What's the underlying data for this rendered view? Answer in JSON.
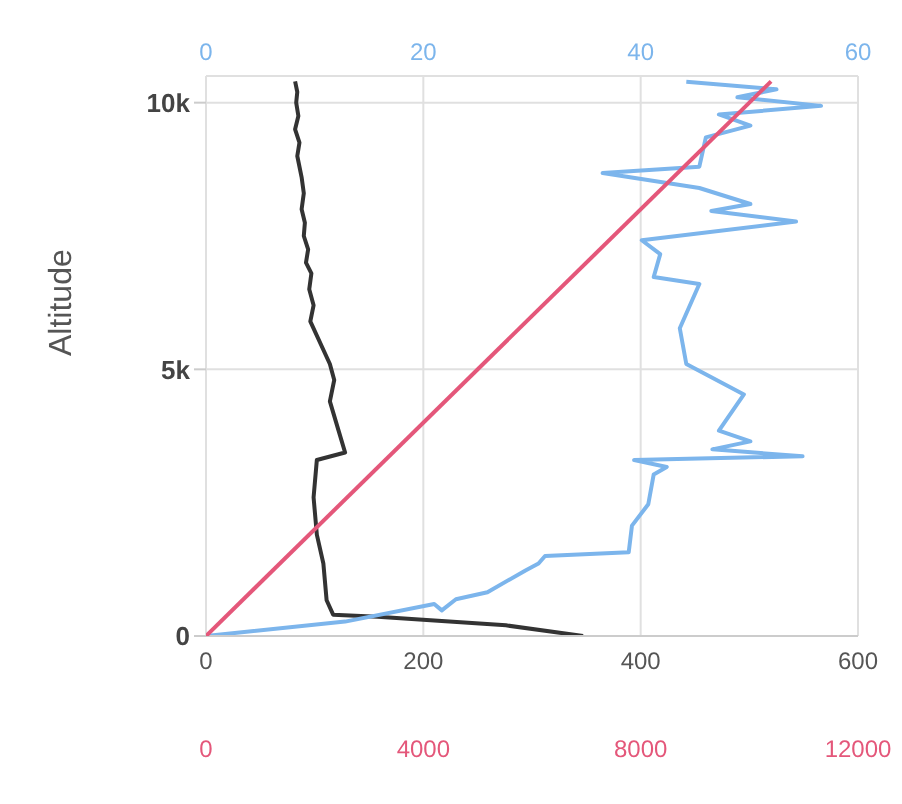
{
  "chart_data": [
    {
      "type": "line",
      "ylabel": "Altitude",
      "ylim": [
        0,
        10500
      ],
      "yticks": [
        {
          "value": 0,
          "label": "0"
        },
        {
          "value": 5000,
          "label": "5k"
        },
        {
          "value": 10000,
          "label": "10k"
        }
      ],
      "xlim": [
        0,
        600
      ],
      "xticks": [
        0,
        200,
        400,
        600
      ],
      "x2lim": [
        0,
        60
      ],
      "x2ticks": [
        0,
        20,
        40,
        60
      ],
      "grid": true,
      "marker": "none",
      "series": [
        {
          "color": "#333333",
          "x": [
            347,
            276,
            158,
            117,
            111,
            108,
            102,
            99,
            102,
            128,
            122,
            114,
            118,
            114,
            null,
            96,
            99,
            95,
            97,
            92,
            94,
            90,
            91,
            88,
            90,
            88,
            null,
            84,
            86,
            82,
            85,
            83,
            84,
            82
          ],
          "values": [
            0,
            200,
            360,
            400,
            670,
            1360,
            1900,
            2600,
            3300,
            3440,
            3850,
            4400,
            4800,
            5100,
            null,
            5900,
            6200,
            6500,
            6800,
            7000,
            7250,
            7500,
            7750,
            8000,
            8300,
            8600,
            null,
            9000,
            9250,
            9500,
            9750,
            10000,
            10200,
            10400
          ]
        },
        {
          "color": "#7cb5ec",
          "axis": "x2",
          "x": [
            0,
            12.8,
            21,
            21.7,
            23,
            25.9,
            29.4,
            30.6,
            31.2,
            38.9,
            39.2,
            40.7,
            41.2,
            42.4,
            39.4,
            54.9,
            46.6,
            50.1,
            47.2,
            49.5,
            44.2,
            43.6,
            45.4,
            41.2,
            41.8,
            40.1,
            54.3,
            46.5,
            50.1,
            45.4,
            36.5,
            45.4,
            46,
            50.1,
            47.2,
            56.6,
            48.9,
            52.5,
            44.2
          ],
          "values": [
            0,
            270,
            600,
            480,
            690,
            820,
            1230,
            1360,
            1500,
            1570,
            2070,
            2470,
            3030,
            3170,
            3300,
            3370,
            3500,
            3650,
            3850,
            4530,
            5100,
            5770,
            6600,
            6730,
            7160,
            7420,
            7770,
            7970,
            8100,
            8400,
            8680,
            8800,
            9350,
            9570,
            9780,
            9940,
            10100,
            10250,
            10390
          ]
        }
      ]
    },
    {
      "type": "line",
      "tick_labels": "x",
      "marker": "none",
      "ylim": [
        0,
        10500
      ],
      "xlim": [
        0,
        12000
      ],
      "xticks": [
        0,
        4000,
        8000,
        12000
      ],
      "series": [
        {
          "color": "#e4577a",
          "x": [
            0,
            10400
          ],
          "values": [
            0,
            10400
          ]
        }
      ]
    }
  ]
}
